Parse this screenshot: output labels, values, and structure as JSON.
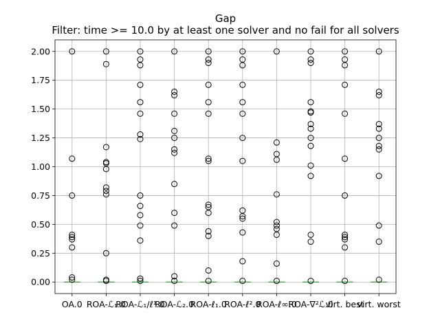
{
  "chart_data": {
    "type": "box",
    "title": "Gap",
    "subtitle": "Filter: time >= 10.0 by at least one solver and no fail for all solvers",
    "xlabel": "",
    "ylabel": "",
    "ylim": [
      -0.1,
      2.1
    ],
    "yticks": [
      0.0,
      0.25,
      0.5,
      0.75,
      1.0,
      1.25,
      1.5,
      1.75,
      2.0
    ],
    "ytick_labels": [
      "0.00",
      "0.25",
      "0.50",
      "0.75",
      "1.00",
      "1.25",
      "1.50",
      "1.75",
      "2.00"
    ],
    "grid": true,
    "median_color": "#2ca02c",
    "categories": [
      "OA.0",
      "ROA-ℒ₁.0",
      "ROA-ℒ₁/ℓ¹.0",
      "ROA-ℒ₂.0",
      "ROA-ℓ₁.0",
      "ROA-ℓ².0",
      "ROA-ℓ∞.0",
      "ROA-∇²ℒ.0",
      "virt. best",
      "virt. worst"
    ],
    "medians": [
      0,
      0,
      0,
      0,
      0,
      0,
      0,
      0,
      0,
      0
    ],
    "outliers": [
      [
        2.0,
        1.07,
        0.75,
        0.41,
        0.39,
        0.37,
        0.3,
        0.04,
        0.02
      ],
      [
        2.0,
        1.89,
        1.17,
        1.04,
        1.03,
        0.98,
        0.82,
        0.79,
        0.76,
        0.25,
        0.02,
        0.01
      ],
      [
        2.0,
        1.93,
        1.88,
        1.71,
        1.56,
        1.46,
        1.28,
        1.24,
        0.75,
        0.66,
        0.58,
        0.49,
        0.36,
        0.03,
        0.01
      ],
      [
        2.0,
        1.65,
        1.62,
        1.46,
        1.31,
        1.25,
        1.15,
        1.12,
        0.85,
        0.6,
        0.49,
        0.05,
        0.01
      ],
      [
        2.0,
        1.93,
        1.9,
        1.71,
        1.56,
        1.46,
        1.07,
        1.05,
        0.67,
        0.65,
        0.6,
        0.44,
        0.4,
        0.1,
        0.01
      ],
      [
        2.0,
        1.93,
        1.88,
        1.71,
        1.56,
        1.46,
        1.25,
        1.05,
        0.62,
        0.57,
        0.55,
        0.43,
        0.18,
        0.01
      ],
      [
        2.0,
        1.21,
        1.11,
        1.06,
        0.76,
        0.52,
        0.49,
        0.46,
        0.41,
        0.16,
        0.01
      ],
      [
        2.0,
        1.93,
        1.9,
        1.56,
        1.48,
        1.47,
        1.37,
        1.33,
        1.25,
        1.18,
        1.01,
        0.92,
        0.41,
        0.35,
        0.01
      ],
      [
        2.0,
        1.93,
        1.88,
        1.71,
        1.46,
        1.07,
        0.75,
        0.41,
        0.39,
        0.37,
        0.3,
        0.01
      ],
      [
        2.0,
        1.65,
        1.62,
        1.37,
        1.33,
        1.25,
        1.18,
        1.15,
        0.92,
        0.49,
        0.35,
        0.02
      ]
    ]
  }
}
